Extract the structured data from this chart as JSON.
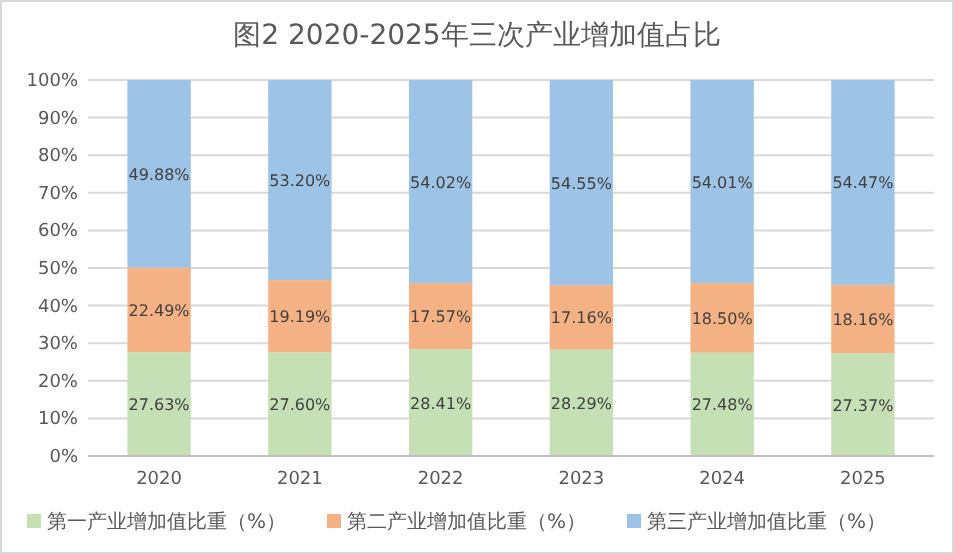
{
  "chart_data": {
    "type": "bar",
    "title": "图2 2020-2025年三次产业增加值占比",
    "stacked": true,
    "categories": [
      "2020",
      "2021",
      "2022",
      "2023",
      "2024",
      "2025"
    ],
    "series": [
      {
        "name": "第一产业增加值比重（%）",
        "color": "#c5e0b4",
        "values": [
          27.63,
          27.6,
          28.41,
          28.29,
          27.48,
          27.37
        ],
        "value_labels": [
          "27.63%",
          "27.60%",
          "28.41%",
          "28.29%",
          "27.48%",
          "27.37%"
        ]
      },
      {
        "name": "第二产业增加值比重（%）",
        "color": "#f4b183",
        "values": [
          22.49,
          19.19,
          17.57,
          17.16,
          18.5,
          18.16
        ],
        "value_labels": [
          "22.49%",
          "19.19%",
          "17.57%",
          "17.16%",
          "18.50%",
          "18.16%"
        ]
      },
      {
        "name": "第三产业增加值比重（%）",
        "color": "#9dc3e6",
        "values": [
          49.88,
          53.2,
          54.02,
          54.55,
          54.01,
          54.47
        ],
        "value_labels": [
          "49.88%",
          "53.20%",
          "54.02%",
          "54.55%",
          "54.01%",
          "54.47%"
        ]
      }
    ],
    "ylim": [
      0,
      100
    ],
    "yticks": [
      {
        "value": 0,
        "label": "0%"
      },
      {
        "value": 10,
        "label": "10%"
      },
      {
        "value": 20,
        "label": "20%"
      },
      {
        "value": 30,
        "label": "30%"
      },
      {
        "value": 40,
        "label": "40%"
      },
      {
        "value": 50,
        "label": "50%"
      },
      {
        "value": 60,
        "label": "60%"
      },
      {
        "value": 70,
        "label": "70%"
      },
      {
        "value": 80,
        "label": "80%"
      },
      {
        "value": 90,
        "label": "90%"
      },
      {
        "value": 100,
        "label": "100%"
      }
    ],
    "grid": "y",
    "legend": "bottom"
  }
}
